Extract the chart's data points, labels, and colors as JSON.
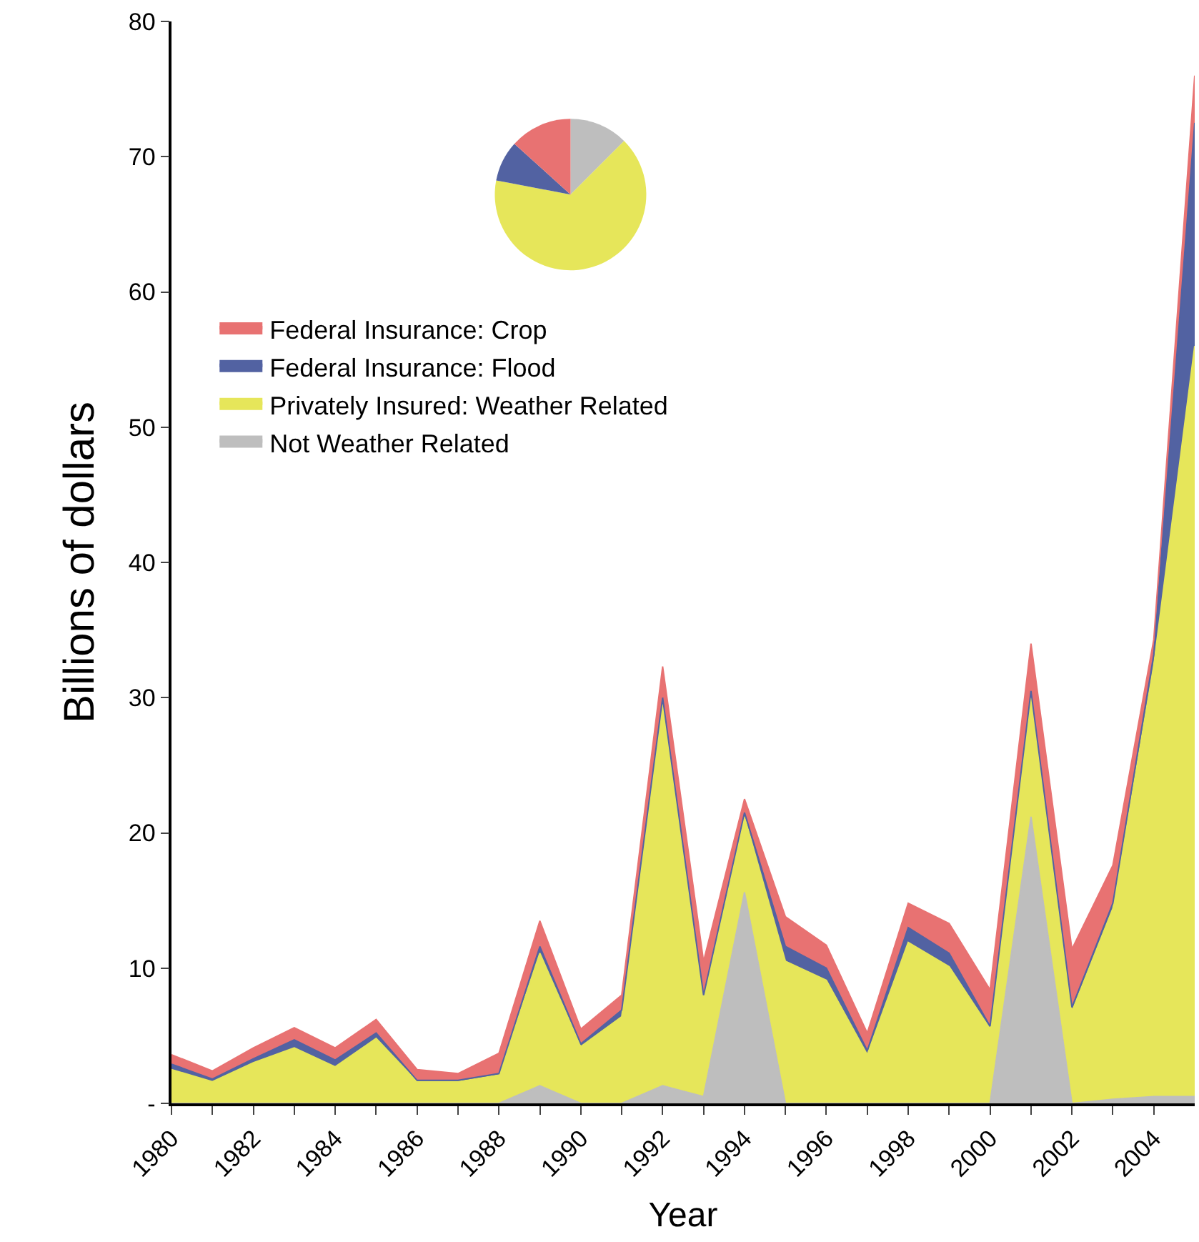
{
  "chart_data": [
    {
      "type": "area",
      "stacked": true,
      "xlabel": "Year",
      "ylabel": "Billions of dollars",
      "x": [
        1980,
        1981,
        1982,
        1983,
        1984,
        1985,
        1986,
        1987,
        1988,
        1989,
        1990,
        1991,
        1992,
        1993,
        1994,
        1995,
        1996,
        1997,
        1998,
        1999,
        2000,
        2001,
        2002,
        2003,
        2004,
        2005
      ],
      "series": [
        {
          "name": "Not Weather Related",
          "color": "#bebebe",
          "values": [
            0,
            0,
            0,
            0,
            0,
            0,
            0,
            0,
            0,
            1.3,
            0,
            0,
            1.3,
            0.5,
            15.6,
            0,
            0,
            0,
            0,
            0,
            0,
            21.2,
            0,
            0.3,
            0.5,
            0.5
          ]
        },
        {
          "name": "Privately Insured: Weather Related",
          "color": "#e6e65a",
          "values": [
            2.5,
            1.6,
            3.0,
            4.1,
            2.7,
            4.8,
            1.6,
            1.6,
            2.1,
            9.8,
            4.2,
            6.4,
            28.2,
            7.2,
            5.6,
            10.5,
            9.1,
            3.6,
            11.9,
            10.1,
            5.5,
            8.8,
            6.8,
            14.1,
            31.9,
            55.5
          ]
        },
        {
          "name": "Federal Insurance: Flood",
          "color": "#5262a2",
          "values": [
            0.4,
            0.2,
            0.3,
            0.6,
            0.5,
            0.4,
            0.1,
            0.1,
            0.1,
            0.5,
            0.2,
            0.5,
            0.5,
            0.3,
            0.3,
            1.1,
            0.9,
            0.3,
            1.1,
            1.0,
            0.2,
            0.5,
            0.3,
            0.4,
            0.8,
            16.5
          ]
        },
        {
          "name": "Federal Insurance: Crop",
          "color": "#e87272",
          "values": [
            0.7,
            0.6,
            0.8,
            0.9,
            0.9,
            1.0,
            0.8,
            0.5,
            1.5,
            1.9,
            1.1,
            1.1,
            2.3,
            2.5,
            1.0,
            2.2,
            1.7,
            1.3,
            1.8,
            2.2,
            2.7,
            3.5,
            4.3,
            2.8,
            1.1,
            3.5
          ]
        }
      ],
      "xlim": [
        1980,
        2005
      ],
      "xticks": [
        1980,
        {
          "value": 1981,
          "label": null
        },
        1982,
        {
          "value": 1983,
          "label": null
        },
        1984,
        {
          "value": 1985,
          "label": null
        },
        1986,
        {
          "value": 1987,
          "label": null
        },
        1988,
        {
          "value": 1989,
          "label": null
        },
        1990,
        {
          "value": 1991,
          "label": null
        },
        1992,
        {
          "value": 1993,
          "label": null
        },
        1994,
        {
          "value": 1995,
          "label": null
        },
        1996,
        {
          "value": 1997,
          "label": null
        },
        1998,
        {
          "value": 1999,
          "label": null
        },
        2000,
        {
          "value": 2001,
          "label": null
        },
        2002,
        {
          "value": 2003,
          "label": null
        },
        2004
      ],
      "ylim": [
        0,
        80
      ],
      "yticks": [
        {
          "value": 0,
          "label": "-"
        },
        10,
        20,
        30,
        40,
        50,
        60,
        70,
        80
      ],
      "legend": "top left"
    },
    {
      "type": "pie",
      "categories": [
        null,
        null,
        null,
        null
      ],
      "values": [
        12.5,
        65.5,
        8.7,
        13.3
      ],
      "colors": [
        "#bebebe",
        "#e6e65a",
        "#5262a2",
        "#e87272"
      ]
    }
  ]
}
